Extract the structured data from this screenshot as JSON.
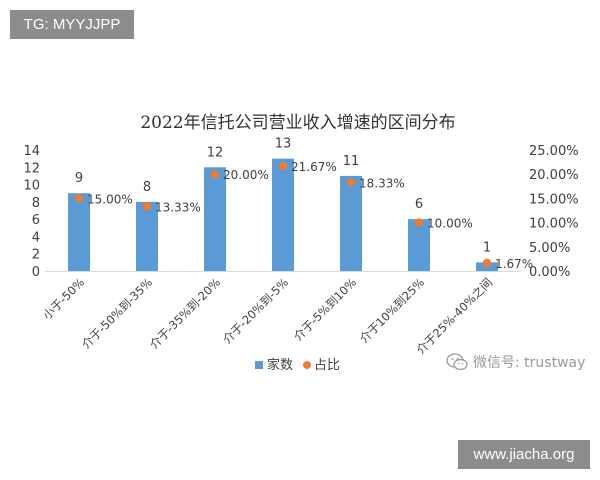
{
  "watermark_top": "TG: MYYJJPP",
  "watermark_bottom": "www.jiacha.org",
  "wechat_watermark": {
    "text": "微信号: trustway",
    "icon": "wechat-icon"
  },
  "colors": {
    "bar": "#5b9bd5",
    "dot": "#ed7d31",
    "text": "#404040",
    "axis": "#d9d9d9"
  },
  "chart_data": {
    "type": "bar",
    "title": "2022年信托公司营业收入增速的区间分布",
    "categories": [
      "小于-50%",
      "介于-50%到-35%",
      "介于-35%到-20%",
      "介于-20%到-5%",
      "介于-5%到10%",
      "介于10%到25%",
      "介于25%-40%之间"
    ],
    "series": [
      {
        "name": "家数",
        "type": "bar",
        "axis": "left",
        "values": [
          9,
          8,
          12,
          13,
          11,
          6,
          1
        ],
        "labels": [
          "9",
          "8",
          "12",
          "13",
          "11",
          "6",
          "1"
        ]
      },
      {
        "name": "占比",
        "type": "scatter",
        "axis": "right",
        "values": [
          15.0,
          13.33,
          20.0,
          21.67,
          18.33,
          10.0,
          1.67
        ],
        "labels": [
          "15.00%",
          "13.33%",
          "20.00%",
          "21.67%",
          "18.33%",
          "10.00%",
          "1.67%"
        ]
      }
    ],
    "y_left": {
      "min": 0,
      "max": 14,
      "ticks": [
        "0",
        "2",
        "4",
        "6",
        "8",
        "10",
        "12",
        "14"
      ]
    },
    "y_right": {
      "min": 0,
      "max": 25,
      "ticks": [
        "0.00%",
        "5.00%",
        "10.00%",
        "15.00%",
        "20.00%",
        "25.00%"
      ]
    },
    "grid": false,
    "legend_position": "bottom"
  }
}
